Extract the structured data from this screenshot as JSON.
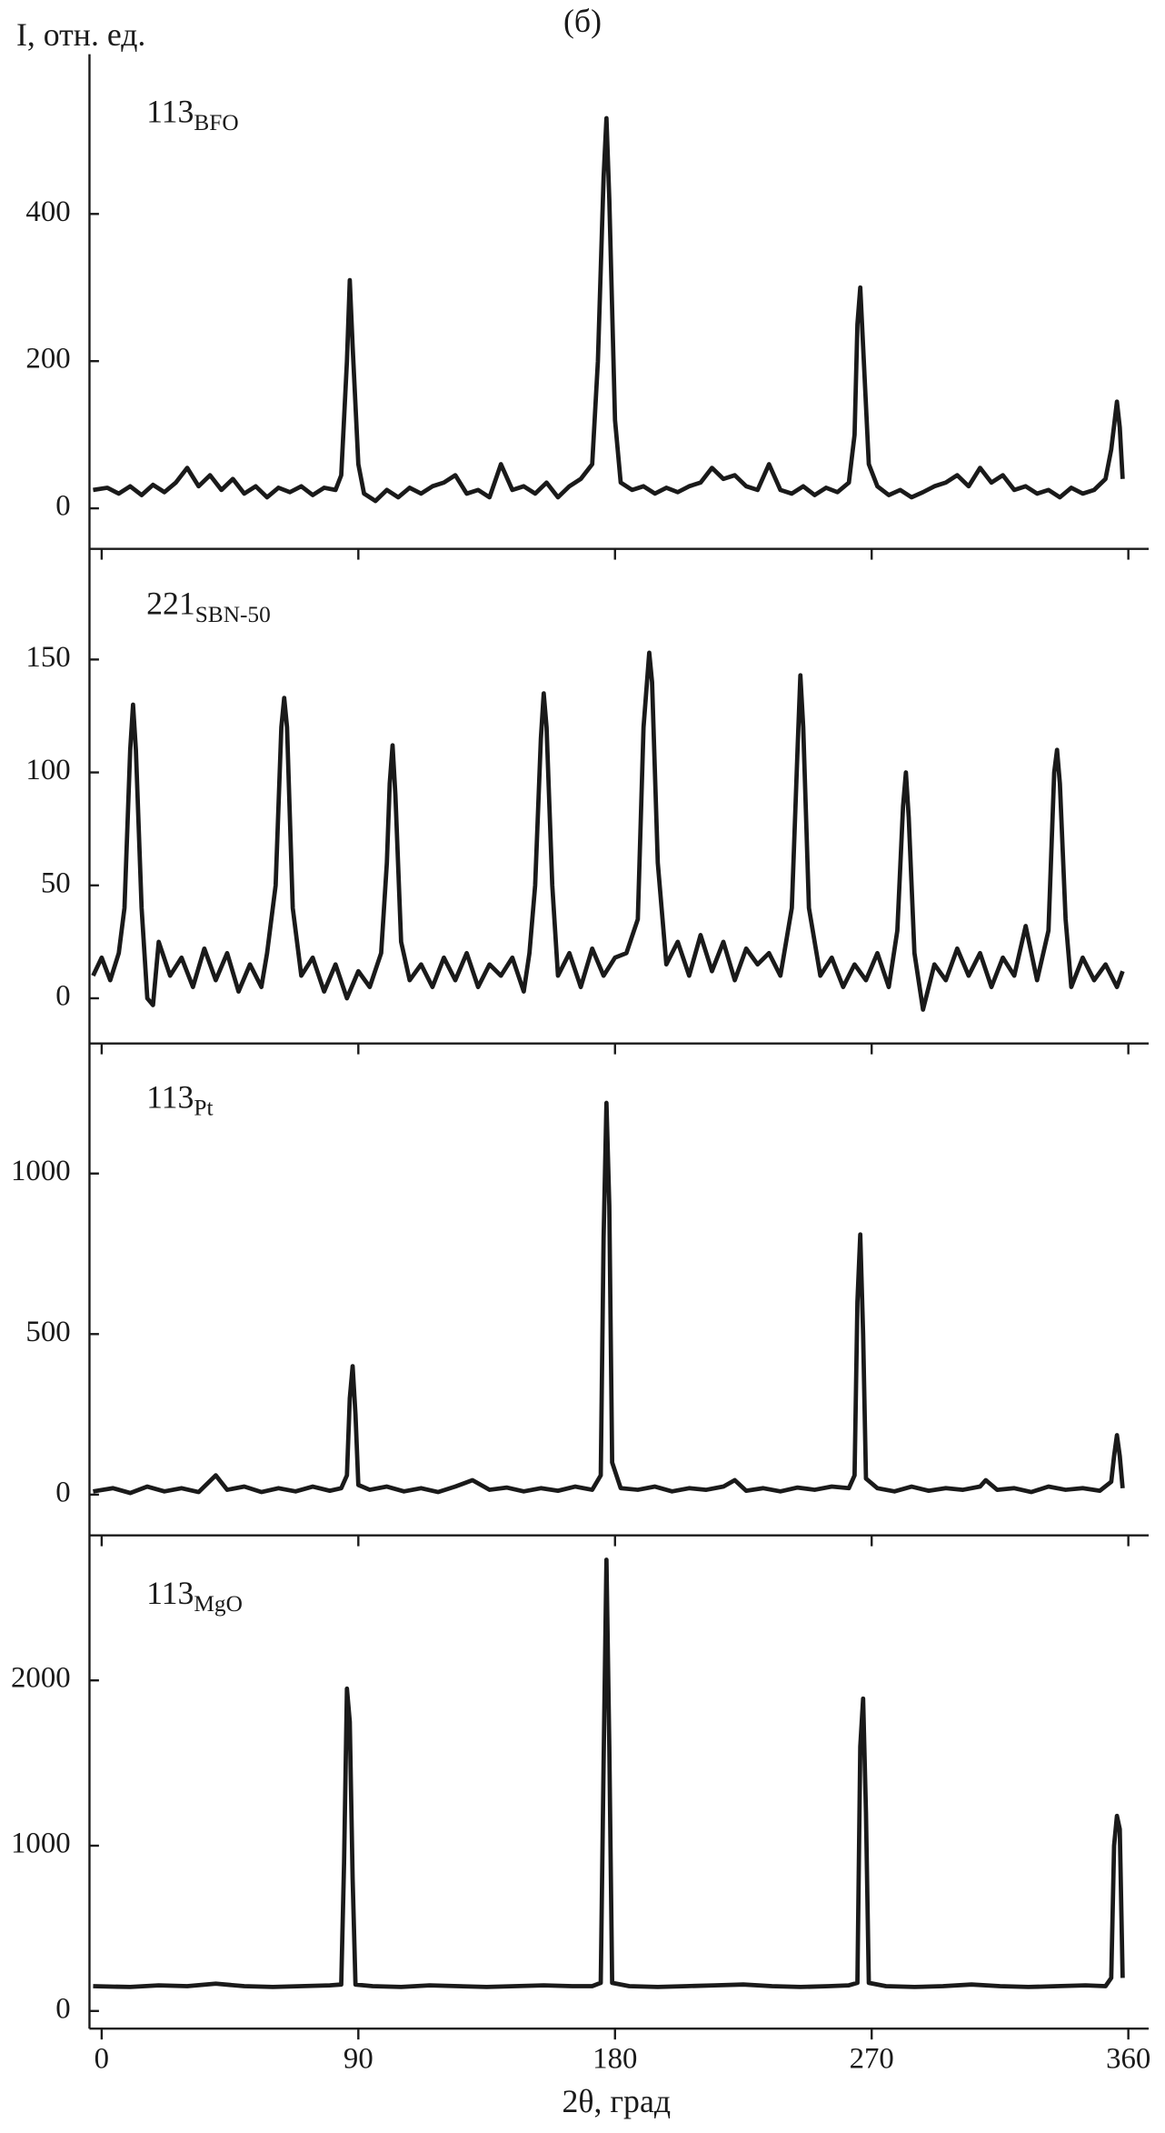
{
  "chart_data": [
    {
      "type": "line",
      "title": "(б)",
      "ylabel": "I, отн. ед.",
      "annotation": "113",
      "annotation_sub": "BFO",
      "xlim": [
        -4.3,
        366
      ],
      "ylim": [
        -55,
        617
      ],
      "yticks": [
        0,
        200,
        400
      ],
      "color": "#1a1a1a",
      "series": [
        {
          "x": [
            -3,
            2,
            6,
            10,
            14,
            18,
            22,
            26,
            30,
            34,
            38,
            42,
            46,
            50,
            54,
            58,
            62,
            66,
            70,
            74,
            78,
            82,
            84,
            86,
            87,
            88,
            90,
            92,
            96,
            100,
            104,
            108,
            112,
            116,
            120,
            124,
            128,
            132,
            136,
            140,
            144,
            148,
            152,
            156,
            160,
            164,
            168,
            172,
            174,
            176,
            177,
            178,
            180,
            182,
            186,
            190,
            194,
            198,
            202,
            206,
            210,
            214,
            218,
            222,
            226,
            230,
            234,
            238,
            242,
            246,
            250,
            254,
            258,
            262,
            264,
            265,
            266,
            267,
            269,
            272,
            276,
            280,
            284,
            288,
            292,
            296,
            300,
            304,
            308,
            312,
            316,
            320,
            324,
            328,
            332,
            336,
            340,
            344,
            348,
            352,
            354,
            356,
            357,
            358
          ],
          "values": [
            25,
            28,
            20,
            30,
            18,
            32,
            22,
            35,
            55,
            30,
            45,
            25,
            40,
            20,
            30,
            15,
            28,
            22,
            30,
            18,
            28,
            25,
            45,
            200,
            310,
            220,
            60,
            20,
            10,
            25,
            15,
            28,
            20,
            30,
            35,
            45,
            20,
            25,
            15,
            60,
            25,
            30,
            20,
            35,
            15,
            30,
            40,
            60,
            200,
            450,
            530,
            420,
            120,
            35,
            25,
            30,
            20,
            28,
            22,
            30,
            35,
            55,
            40,
            45,
            30,
            25,
            60,
            25,
            20,
            30,
            18,
            28,
            22,
            35,
            100,
            250,
            300,
            220,
            60,
            30,
            18,
            25,
            15,
            22,
            30,
            35,
            45,
            30,
            55,
            35,
            45,
            25,
            30,
            20,
            25,
            15,
            28,
            20,
            25,
            40,
            80,
            145,
            110,
            40
          ]
        }
      ]
    },
    {
      "type": "line",
      "annotation": "221",
      "annotation_sub": "SBN-50",
      "xlim": [
        -4.3,
        366
      ],
      "ylim": [
        -20,
        196
      ],
      "yticks": [
        0,
        50,
        100,
        150
      ],
      "color": "#1a1a1a",
      "series": [
        {
          "x": [
            -3,
            0,
            3,
            6,
            8,
            10,
            11,
            12,
            14,
            16,
            18,
            20,
            24,
            28,
            32,
            36,
            40,
            44,
            48,
            52,
            56,
            58,
            61,
            63,
            64,
            65,
            67,
            70,
            74,
            78,
            82,
            86,
            90,
            94,
            98,
            100,
            101,
            102,
            103,
            105,
            108,
            112,
            116,
            120,
            124,
            128,
            132,
            136,
            140,
            144,
            148,
            150,
            152,
            154,
            155,
            156,
            158,
            160,
            164,
            168,
            172,
            176,
            180,
            184,
            188,
            190,
            192,
            193,
            195,
            198,
            202,
            206,
            210,
            214,
            218,
            222,
            226,
            230,
            234,
            238,
            242,
            244,
            245,
            246,
            248,
            252,
            256,
            260,
            264,
            268,
            272,
            276,
            279,
            281,
            282,
            283,
            285,
            288,
            292,
            296,
            300,
            304,
            308,
            312,
            316,
            320,
            324,
            328,
            332,
            334,
            335,
            336,
            338,
            340,
            344,
            348,
            352,
            356,
            358
          ],
          "values": [
            10,
            18,
            8,
            20,
            40,
            110,
            130,
            110,
            40,
            0,
            -3,
            25,
            10,
            18,
            5,
            22,
            8,
            20,
            3,
            15,
            5,
            20,
            50,
            120,
            133,
            120,
            40,
            10,
            18,
            3,
            15,
            0,
            12,
            5,
            20,
            60,
            95,
            112,
            90,
            25,
            8,
            15,
            5,
            18,
            8,
            20,
            5,
            15,
            10,
            18,
            3,
            20,
            50,
            115,
            135,
            120,
            50,
            10,
            20,
            5,
            22,
            10,
            18,
            20,
            35,
            120,
            153,
            140,
            60,
            15,
            25,
            10,
            28,
            12,
            25,
            8,
            22,
            15,
            20,
            10,
            40,
            110,
            143,
            120,
            40,
            10,
            18,
            5,
            15,
            8,
            20,
            5,
            30,
            85,
            100,
            80,
            20,
            -5,
            15,
            8,
            22,
            10,
            20,
            5,
            18,
            10,
            32,
            8,
            30,
            100,
            110,
            95,
            35,
            5,
            18,
            8,
            15,
            5,
            12
          ]
        }
      ]
    },
    {
      "type": "line",
      "annotation": "113",
      "annotation_sub": "Pt",
      "xlim": [
        -4.3,
        366
      ],
      "ylim": [
        -127,
        1384
      ],
      "yticks": [
        0,
        500,
        1000
      ],
      "color": "#1a1a1a",
      "series": [
        {
          "x": [
            -3,
            4,
            10,
            16,
            22,
            28,
            34,
            40,
            44,
            50,
            56,
            62,
            68,
            74,
            80,
            84,
            86,
            87,
            88,
            89,
            90,
            94,
            100,
            106,
            112,
            118,
            124,
            130,
            136,
            142,
            148,
            154,
            160,
            166,
            172,
            175,
            176,
            177,
            178,
            179,
            182,
            188,
            194,
            200,
            206,
            212,
            218,
            222,
            226,
            232,
            238,
            244,
            250,
            256,
            262,
            264,
            265,
            266,
            267,
            268,
            272,
            278,
            284,
            290,
            296,
            302,
            308,
            310,
            314,
            320,
            326,
            332,
            338,
            344,
            350,
            354,
            355,
            356,
            357,
            358
          ],
          "values": [
            10,
            20,
            5,
            25,
            10,
            20,
            8,
            60,
            15,
            25,
            8,
            20,
            10,
            25,
            12,
            20,
            60,
            300,
            400,
            250,
            30,
            15,
            25,
            10,
            20,
            8,
            25,
            45,
            15,
            22,
            10,
            20,
            12,
            25,
            15,
            60,
            800,
            1220,
            900,
            100,
            20,
            15,
            25,
            10,
            20,
            15,
            25,
            45,
            12,
            20,
            10,
            22,
            15,
            25,
            20,
            60,
            600,
            810,
            500,
            50,
            20,
            10,
            25,
            12,
            20,
            15,
            25,
            45,
            15,
            20,
            8,
            25,
            15,
            20,
            12,
            40,
            120,
            185,
            120,
            20
          ]
        }
      ]
    },
    {
      "type": "line",
      "annotation": "113",
      "annotation_sub": "MgO",
      "xlabel": "2θ, град",
      "xlim": [
        -4.3,
        366
      ],
      "ylim": [
        -107,
        2820
      ],
      "yticks": [
        0,
        1000,
        2000
      ],
      "xticks": [
        0,
        90,
        180,
        270,
        360
      ],
      "color": "#1a1a1a",
      "series": [
        {
          "x": [
            -3,
            10,
            20,
            30,
            40,
            50,
            60,
            70,
            80,
            84,
            85,
            86,
            87,
            88,
            89,
            95,
            105,
            115,
            125,
            135,
            145,
            155,
            165,
            172,
            175,
            176,
            177,
            178,
            179,
            185,
            195,
            205,
            215,
            225,
            235,
            245,
            255,
            262,
            265,
            266,
            267,
            268,
            269,
            275,
            285,
            295,
            305,
            315,
            325,
            335,
            345,
            352,
            354,
            355,
            356,
            357,
            358
          ],
          "values": [
            150,
            145,
            155,
            150,
            165,
            150,
            145,
            150,
            155,
            160,
            900,
            1950,
            1750,
            800,
            160,
            150,
            145,
            155,
            150,
            145,
            150,
            155,
            150,
            150,
            170,
            1500,
            2730,
            1600,
            170,
            150,
            145,
            150,
            155,
            160,
            150,
            145,
            150,
            155,
            170,
            1600,
            1890,
            1200,
            170,
            150,
            145,
            150,
            160,
            150,
            145,
            150,
            155,
            150,
            200,
            1000,
            1180,
            1100,
            200
          ]
        }
      ]
    }
  ]
}
